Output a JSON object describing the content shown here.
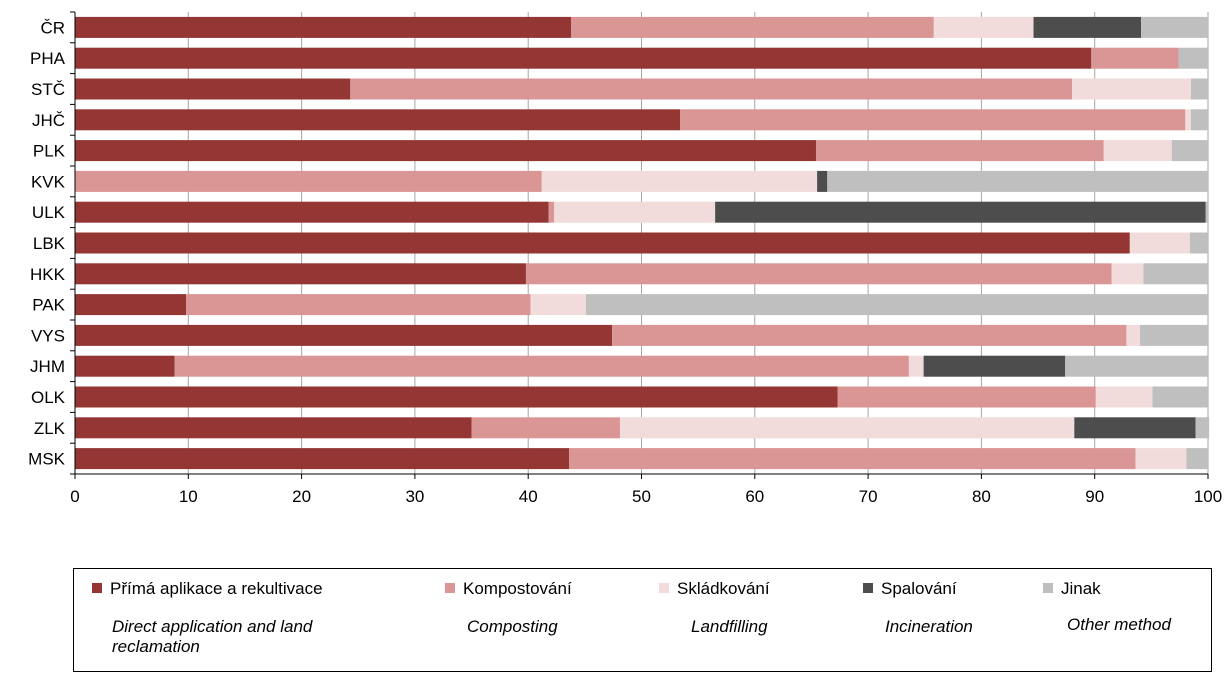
{
  "chart_data": {
    "type": "bar",
    "orientation": "horizontal",
    "stacked": true,
    "categories": [
      "ČR",
      "PHA",
      "STČ",
      "JHČ",
      "PLK",
      "KVK",
      "ULK",
      "LBK",
      "HKK",
      "PAK",
      "VYS",
      "JHM",
      "OLK",
      "ZLK",
      "MSK"
    ],
    "series": [
      {
        "name": "Přímá aplikace a rekultivace",
        "name_en": "Direct application and land reclamation",
        "color": "#943634",
        "values": [
          43.8,
          89.7,
          24.3,
          53.4,
          65.4,
          0,
          41.8,
          93.1,
          39.8,
          9.8,
          47.4,
          8.8,
          67.3,
          35.0,
          43.6
        ]
      },
      {
        "name": "Kompostování",
        "name_en": "Composting",
        "color": "#da9694",
        "values": [
          32.0,
          7.7,
          63.7,
          44.6,
          25.4,
          41.2,
          0.5,
          0,
          51.7,
          30.4,
          45.4,
          64.8,
          22.8,
          13.1,
          50.0
        ]
      },
      {
        "name": "Skládkování",
        "name_en": "Landfilling",
        "color": "#f2dcdb",
        "values": [
          8.8,
          0,
          10.5,
          0.5,
          6.0,
          24.3,
          14.2,
          5.3,
          2.8,
          4.9,
          1.2,
          1.3,
          5.0,
          40.1,
          4.5
        ]
      },
      {
        "name": "Spalování",
        "name_en": "Incineration",
        "color": "#4d4d4d",
        "values": [
          9.5,
          0,
          0,
          0,
          0,
          0.9,
          43.3,
          0,
          0,
          0,
          0,
          12.5,
          0,
          10.7,
          0
        ]
      },
      {
        "name": "Jinak",
        "name_en": "Other method",
        "color": "#bfbfbf",
        "values": [
          5.9,
          2.6,
          1.5,
          1.5,
          3.2,
          33.6,
          0.2,
          1.6,
          5.7,
          54.9,
          6.0,
          12.6,
          4.9,
          1.2,
          1.9
        ]
      }
    ],
    "xlim": [
      0,
      100
    ],
    "xticks": [
      0,
      10,
      20,
      30,
      40,
      50,
      60,
      70,
      80,
      90,
      100
    ],
    "grid": "vertical",
    "legend_position": "bottom"
  },
  "legend": {
    "items": [
      {
        "cz": "Přímá aplikace a rekultivace",
        "en": "Direct application and land reclamation",
        "color": "#943634"
      },
      {
        "cz": "Kompostování",
        "en": "Composting",
        "color": "#da9694"
      },
      {
        "cz": "Skládkování",
        "en": "Landfilling",
        "color": "#f2dcdb"
      },
      {
        "cz": "Spalování",
        "en": "Incineration",
        "color": "#4d4d4d"
      },
      {
        "cz": "Jinak",
        "en": "Other method",
        "color": "#bfbfbf"
      }
    ]
  }
}
